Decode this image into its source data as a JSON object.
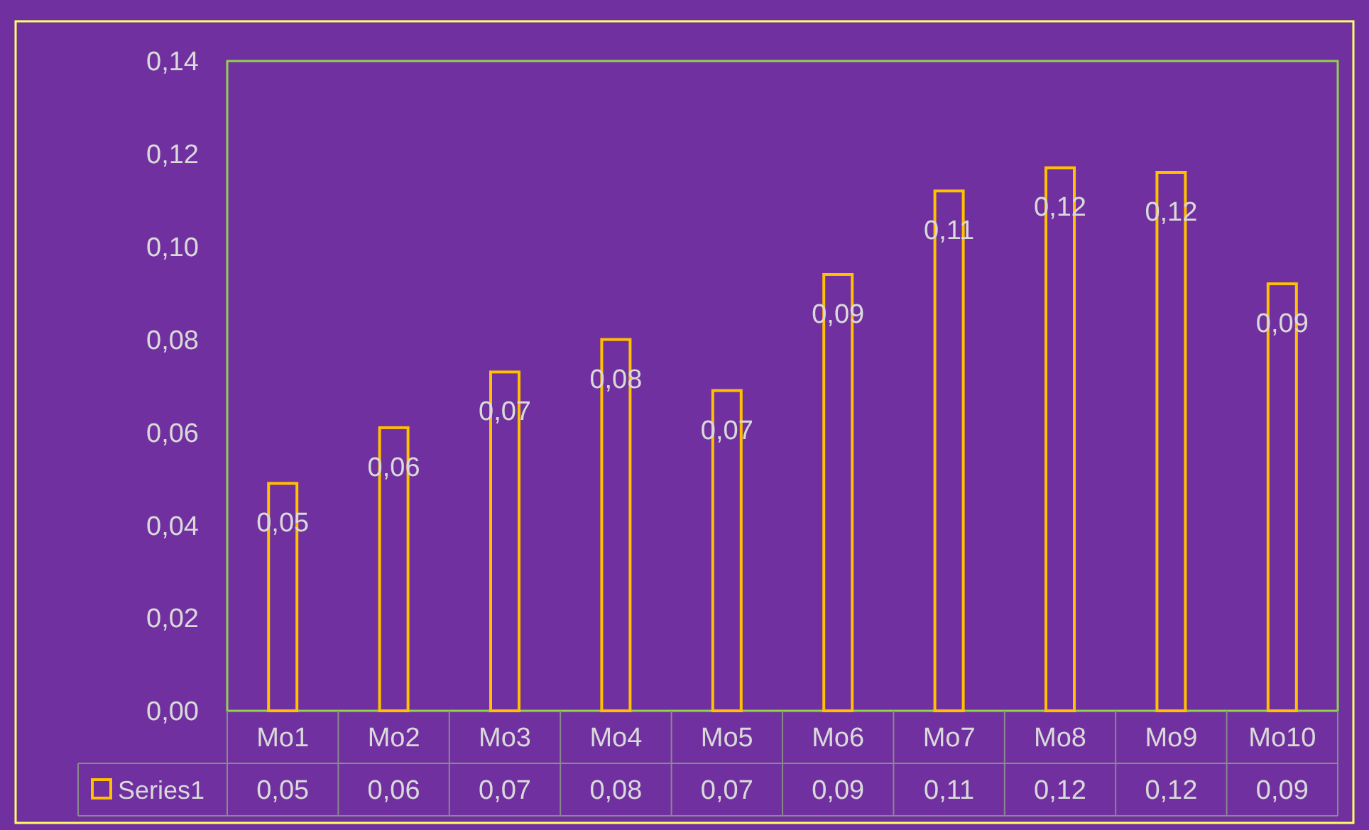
{
  "chart_data": {
    "type": "bar",
    "categories": [
      "Mo1",
      "Mo2",
      "Mo3",
      "Mo4",
      "Mo5",
      "Mo6",
      "Mo7",
      "Mo8",
      "Mo9",
      "Mo10"
    ],
    "series": [
      {
        "name": "Series1",
        "color": "#ffc000",
        "values": [
          0.049,
          0.061,
          0.073,
          0.08,
          0.069,
          0.094,
          0.112,
          0.117,
          0.116,
          0.092
        ],
        "value_labels": [
          "0,05",
          "0,06",
          "0,07",
          "0,08",
          "0,07",
          "0,09",
          "0,11",
          "0,12",
          "0,12",
          "0,09"
        ]
      }
    ],
    "ylim": [
      0,
      0.14
    ],
    "yticks": [
      {
        "value": 0,
        "label": "0,00"
      },
      {
        "value": 0.02,
        "label": "0,02"
      },
      {
        "value": 0.04,
        "label": "0,04"
      },
      {
        "value": 0.06,
        "label": "0,06"
      },
      {
        "value": 0.08,
        "label": "0,08"
      },
      {
        "value": 0.1,
        "label": "0,10"
      },
      {
        "value": 0.12,
        "label": "0,12"
      },
      {
        "value": 0.14,
        "label": "0,14"
      }
    ],
    "grid": false,
    "legend": "bottom"
  }
}
